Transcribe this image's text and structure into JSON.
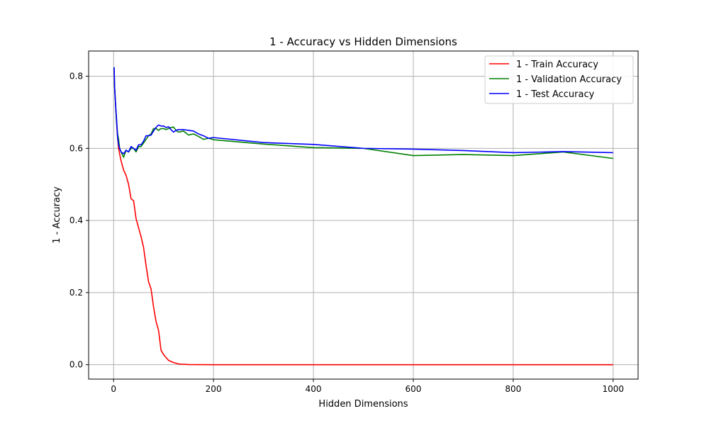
{
  "chart_data": {
    "type": "line",
    "title": "1 - Accuracy vs Hidden Dimensions",
    "xlabel": "Hidden Dimensions",
    "ylabel": "1 - Accuracy",
    "xlim": [
      -50,
      1050
    ],
    "ylim": [
      -0.04,
      0.87
    ],
    "xticks": [
      0,
      200,
      400,
      600,
      800,
      1000
    ],
    "yticks": [
      0.0,
      0.2,
      0.4,
      0.6,
      0.8
    ],
    "xtick_labels": [
      "0",
      "200",
      "400",
      "600",
      "800",
      "1000"
    ],
    "ytick_labels": [
      "0.0",
      "0.2",
      "0.4",
      "0.6",
      "0.8"
    ],
    "grid": true,
    "legend_position": "top-right",
    "series": [
      {
        "name": "1 - Train Accuracy",
        "color": "#ff0000",
        "points": [
          [
            1,
            0.82
          ],
          [
            2,
            0.77
          ],
          [
            4,
            0.72
          ],
          [
            6,
            0.67
          ],
          [
            8,
            0.63
          ],
          [
            10,
            0.6
          ],
          [
            12,
            0.585
          ],
          [
            15,
            0.565
          ],
          [
            20,
            0.54
          ],
          [
            25,
            0.525
          ],
          [
            30,
            0.5
          ],
          [
            35,
            0.46
          ],
          [
            40,
            0.455
          ],
          [
            45,
            0.405
          ],
          [
            50,
            0.38
          ],
          [
            55,
            0.355
          ],
          [
            60,
            0.325
          ],
          [
            65,
            0.275
          ],
          [
            70,
            0.23
          ],
          [
            75,
            0.21
          ],
          [
            80,
            0.16
          ],
          [
            85,
            0.12
          ],
          [
            90,
            0.095
          ],
          [
            95,
            0.04
          ],
          [
            100,
            0.028
          ],
          [
            105,
            0.02
          ],
          [
            110,
            0.012
          ],
          [
            120,
            0.006
          ],
          [
            130,
            0.002
          ],
          [
            150,
            0.0005
          ],
          [
            200,
            0.0
          ],
          [
            300,
            0.0
          ],
          [
            400,
            0.0
          ],
          [
            500,
            0.0
          ],
          [
            600,
            0.0
          ],
          [
            700,
            0.0
          ],
          [
            800,
            0.0
          ],
          [
            900,
            0.0
          ],
          [
            1000,
            0.0
          ]
        ]
      },
      {
        "name": "1 - Validation Accuracy",
        "color": "#008000",
        "points": [
          [
            1,
            0.825
          ],
          [
            2,
            0.77
          ],
          [
            4,
            0.72
          ],
          [
            6,
            0.67
          ],
          [
            8,
            0.64
          ],
          [
            10,
            0.625
          ],
          [
            12,
            0.6
          ],
          [
            15,
            0.59
          ],
          [
            20,
            0.575
          ],
          [
            25,
            0.595
          ],
          [
            30,
            0.59
          ],
          [
            35,
            0.6
          ],
          [
            40,
            0.6
          ],
          [
            45,
            0.59
          ],
          [
            50,
            0.605
          ],
          [
            55,
            0.605
          ],
          [
            60,
            0.615
          ],
          [
            65,
            0.625
          ],
          [
            70,
            0.635
          ],
          [
            75,
            0.64
          ],
          [
            80,
            0.655
          ],
          [
            85,
            0.655
          ],
          [
            90,
            0.65
          ],
          [
            95,
            0.655
          ],
          [
            100,
            0.655
          ],
          [
            105,
            0.652
          ],
          [
            110,
            0.655
          ],
          [
            115,
            0.658
          ],
          [
            120,
            0.659
          ],
          [
            125,
            0.65
          ],
          [
            130,
            0.645
          ],
          [
            140,
            0.648
          ],
          [
            150,
            0.637
          ],
          [
            160,
            0.64
          ],
          [
            170,
            0.633
          ],
          [
            180,
            0.625
          ],
          [
            190,
            0.628
          ],
          [
            200,
            0.624
          ],
          [
            300,
            0.612
          ],
          [
            400,
            0.602
          ],
          [
            500,
            0.6
          ],
          [
            600,
            0.58
          ],
          [
            700,
            0.583
          ],
          [
            800,
            0.58
          ],
          [
            900,
            0.59
          ],
          [
            1000,
            0.572
          ]
        ]
      },
      {
        "name": "1 - Test Accuracy",
        "color": "#0000ff",
        "points": [
          [
            1,
            0.825
          ],
          [
            2,
            0.77
          ],
          [
            4,
            0.72
          ],
          [
            6,
            0.68
          ],
          [
            8,
            0.63
          ],
          [
            10,
            0.61
          ],
          [
            12,
            0.6
          ],
          [
            15,
            0.59
          ],
          [
            20,
            0.585
          ],
          [
            25,
            0.595
          ],
          [
            30,
            0.59
          ],
          [
            35,
            0.605
          ],
          [
            40,
            0.6
          ],
          [
            45,
            0.595
          ],
          [
            50,
            0.61
          ],
          [
            55,
            0.61
          ],
          [
            60,
            0.62
          ],
          [
            65,
            0.635
          ],
          [
            70,
            0.635
          ],
          [
            75,
            0.637
          ],
          [
            80,
            0.648
          ],
          [
            85,
            0.658
          ],
          [
            90,
            0.665
          ],
          [
            95,
            0.662
          ],
          [
            100,
            0.662
          ],
          [
            105,
            0.658
          ],
          [
            110,
            0.66
          ],
          [
            115,
            0.652
          ],
          [
            120,
            0.645
          ],
          [
            125,
            0.65
          ],
          [
            130,
            0.652
          ],
          [
            140,
            0.652
          ],
          [
            150,
            0.65
          ],
          [
            160,
            0.648
          ],
          [
            170,
            0.64
          ],
          [
            180,
            0.635
          ],
          [
            190,
            0.628
          ],
          [
            200,
            0.63
          ],
          [
            300,
            0.616
          ],
          [
            400,
            0.611
          ],
          [
            500,
            0.6
          ],
          [
            600,
            0.598
          ],
          [
            700,
            0.594
          ],
          [
            800,
            0.588
          ],
          [
            900,
            0.591
          ],
          [
            1000,
            0.588
          ]
        ]
      }
    ]
  }
}
